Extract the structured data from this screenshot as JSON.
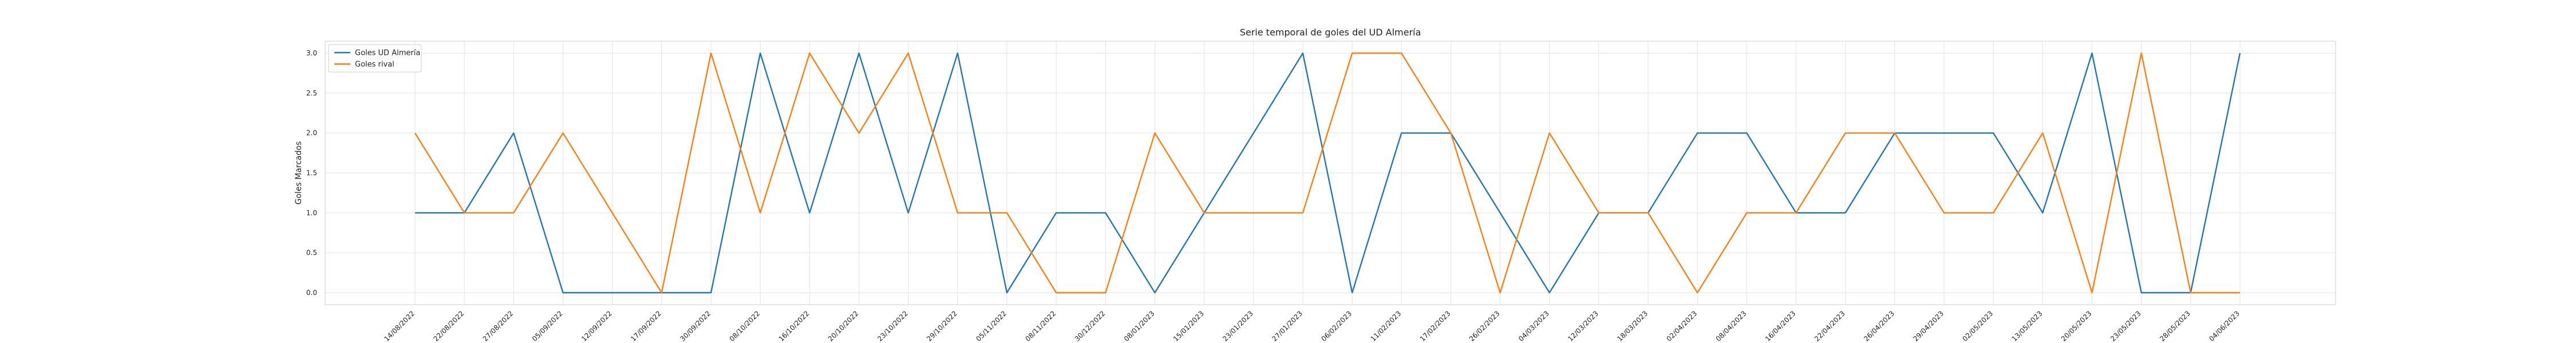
{
  "chart_data": {
    "type": "line",
    "title": "Serie temporal de goles del UD Almería",
    "xlabel": "",
    "ylabel": "Goles Marcados",
    "ylim": [
      -0.15,
      3.15
    ],
    "yticks": [
      0.0,
      0.5,
      1.0,
      1.5,
      2.0,
      2.5,
      3.0
    ],
    "ytick_labels": [
      "0.0",
      "0.5",
      "1.0",
      "1.5",
      "2.0",
      "2.5",
      "3.0"
    ],
    "grid": true,
    "legend_position": "top-left",
    "x": [
      "14/08/2022",
      "22/08/2022",
      "27/08/2022",
      "05/09/2022",
      "12/09/2022",
      "17/09/2022",
      "30/09/2022",
      "08/10/2022",
      "16/10/2022",
      "20/10/2022",
      "23/10/2022",
      "29/10/2022",
      "05/11/2022",
      "08/11/2022",
      "30/12/2022",
      "08/01/2023",
      "15/01/2023",
      "23/01/2023",
      "27/01/2023",
      "06/02/2023",
      "11/02/2023",
      "17/02/2023",
      "26/02/2023",
      "04/03/2023",
      "12/03/2023",
      "18/03/2023",
      "02/04/2023",
      "08/04/2023",
      "16/04/2023",
      "22/04/2023",
      "26/04/2023",
      "29/04/2023",
      "02/05/2023",
      "13/05/2023",
      "20/05/2023",
      "23/05/2023",
      "28/05/2023",
      "04/06/2023"
    ],
    "series": [
      {
        "name": "Goles UD Almería",
        "color": "#1f77b4",
        "values": [
          1,
          1,
          2,
          0,
          0,
          0,
          0,
          3,
          1,
          3,
          1,
          3,
          0,
          1,
          1,
          0,
          1,
          2,
          3,
          0,
          2,
          2,
          1,
          0,
          1,
          1,
          2,
          2,
          1,
          1,
          2,
          2,
          2,
          1,
          3,
          0,
          0,
          3
        ]
      },
      {
        "name": "Goles rival",
        "color": "#ff7f0e",
        "values": [
          2,
          1,
          1,
          2,
          1,
          0,
          3,
          1,
          3,
          2,
          3,
          1,
          1,
          0,
          0,
          2,
          1,
          1,
          1,
          3,
          3,
          2,
          0,
          2,
          1,
          1,
          0,
          1,
          1,
          2,
          2,
          1,
          1,
          2,
          0,
          3,
          0,
          0
        ]
      }
    ]
  }
}
